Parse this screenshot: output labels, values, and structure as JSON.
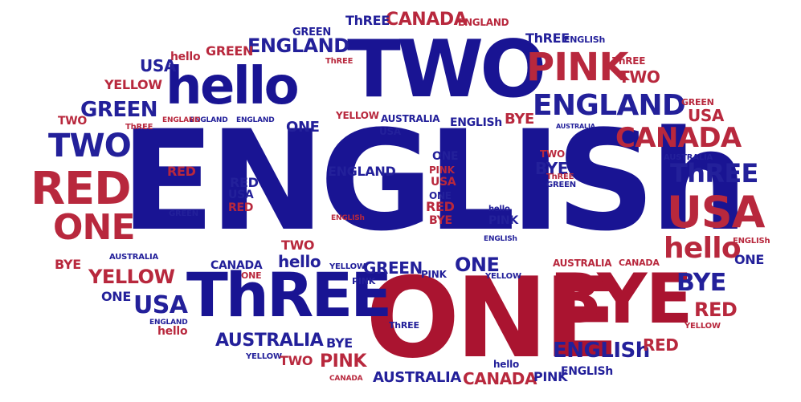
{
  "colors": {
    "blue": "#23209a",
    "red": "#b8283d"
  },
  "words": {
    "english": "ENGLISh",
    "one": "ONE",
    "two": "TWO",
    "hello": "hello",
    "bye": "BYE",
    "three": "ThREE",
    "red": "RED",
    "usa": "USA",
    "england": "ENGLAND",
    "canada": "CANADA",
    "pink": "PINK",
    "green": "GREEN",
    "yellow": "YELLOW",
    "australia": "AUSTRALIA",
    "english_small": "ENGLISh"
  }
}
